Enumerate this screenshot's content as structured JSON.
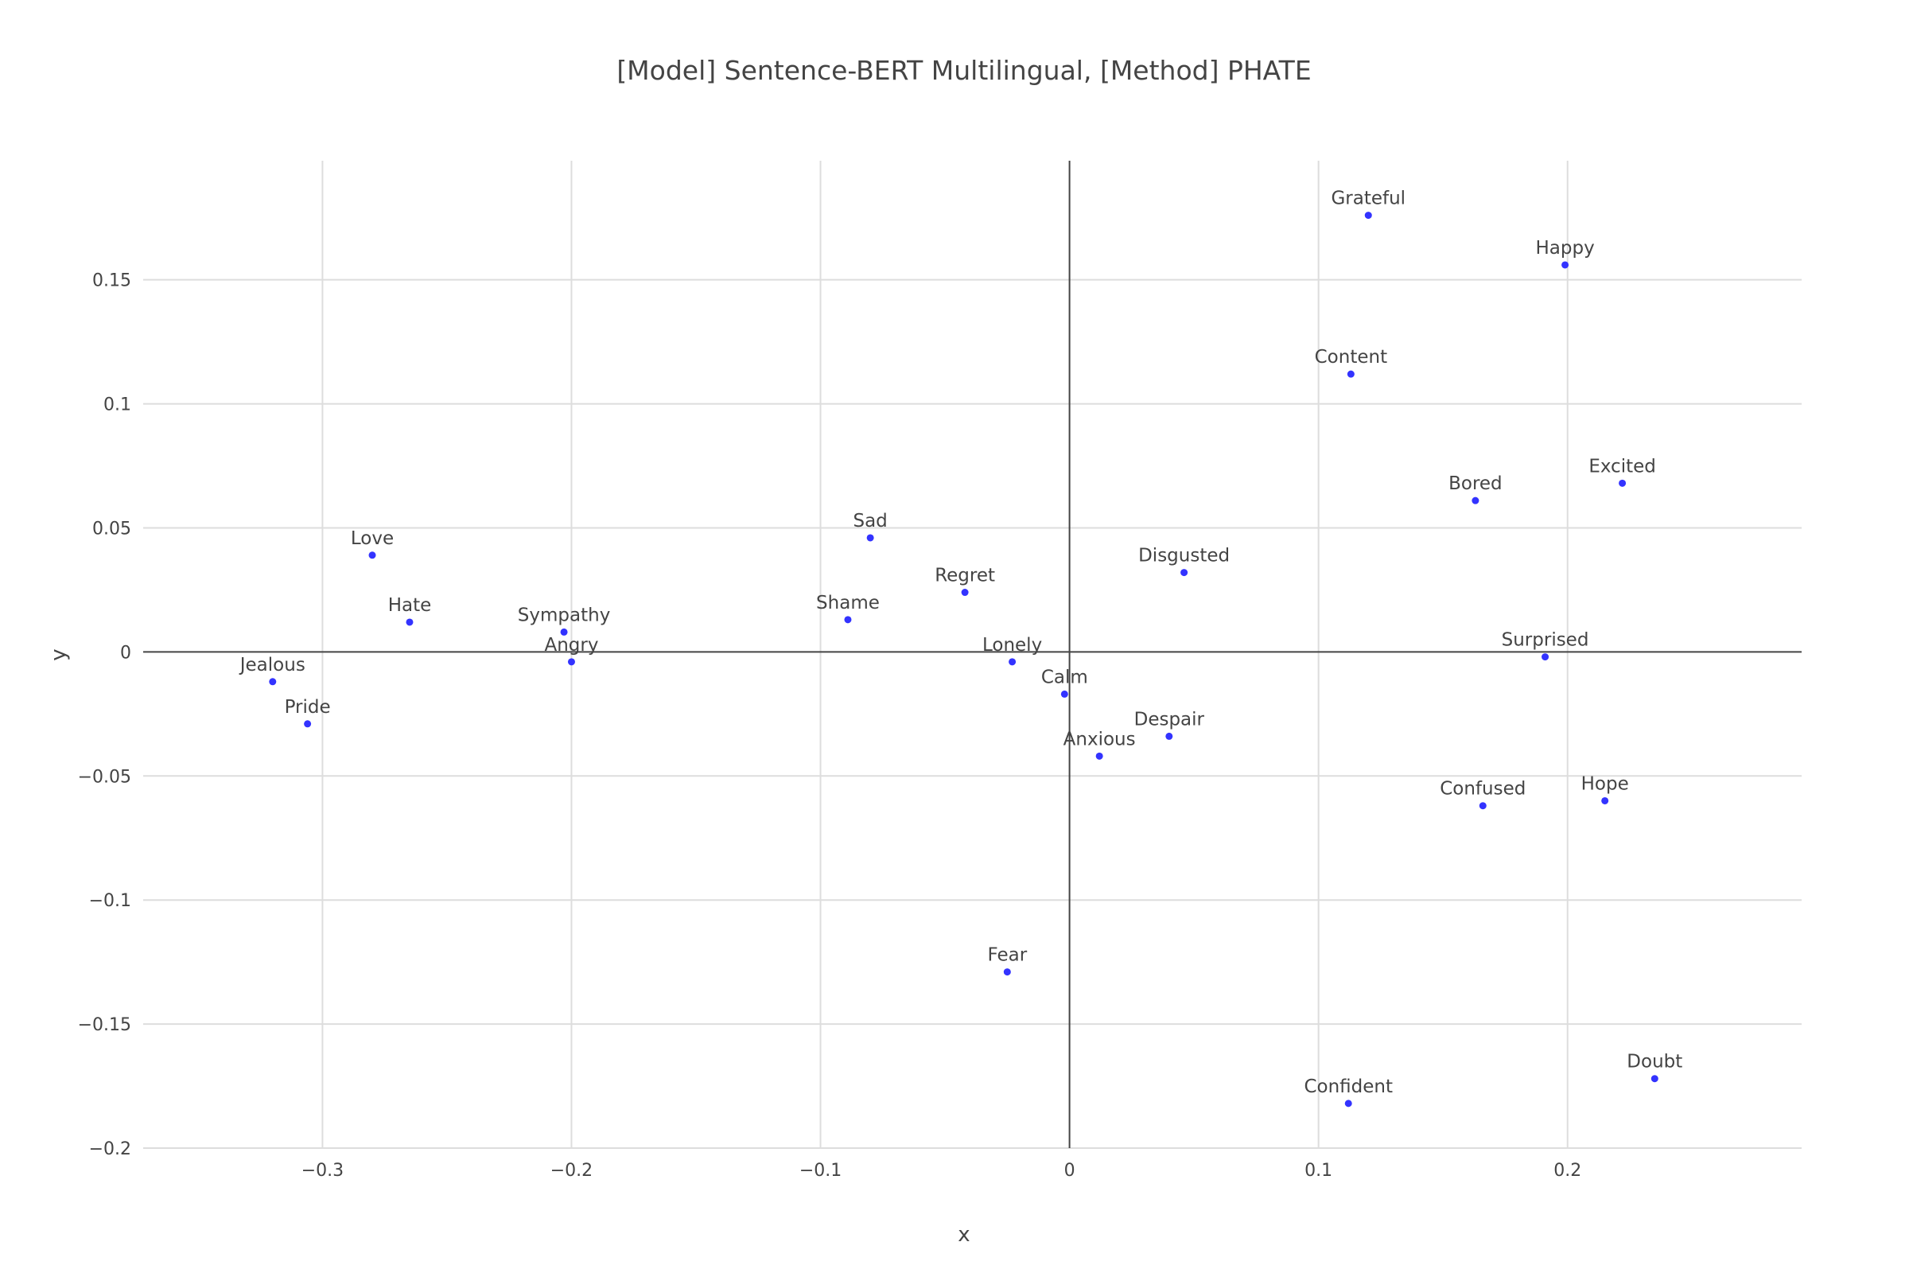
{
  "chart_data": {
    "type": "scatter",
    "title": "[Model] Sentence-BERT Multilingual, [Method] PHATE",
    "xlabel": "x",
    "ylabel": "y",
    "xlim": [
      -0.372,
      0.294
    ],
    "ylim": [
      -0.2,
      0.198
    ],
    "x_ticks": [
      -0.3,
      -0.2,
      -0.1,
      0,
      0.1,
      0.2
    ],
    "x_tick_labels": [
      "−0.3",
      "−0.2",
      "−0.1",
      "0",
      "0.1",
      "0.2"
    ],
    "y_ticks": [
      -0.2,
      -0.15,
      -0.1,
      -0.05,
      0,
      0.05,
      0.1,
      0.15
    ],
    "y_tick_labels": [
      "−0.2",
      "−0.15",
      "−0.1",
      "−0.05",
      "0",
      "0.05",
      "0.1",
      "0.15"
    ],
    "grid": true,
    "zero_lines": true,
    "marker_color": "#3333ff",
    "text_color": "#444444",
    "grid_color": "#dddddd",
    "points": [
      {
        "label": "Grateful",
        "x": 0.12,
        "y": 0.176
      },
      {
        "label": "Happy",
        "x": 0.199,
        "y": 0.156
      },
      {
        "label": "Content",
        "x": 0.113,
        "y": 0.112
      },
      {
        "label": "Excited",
        "x": 0.222,
        "y": 0.068
      },
      {
        "label": "Bored",
        "x": 0.163,
        "y": 0.061
      },
      {
        "label": "Sad",
        "x": -0.08,
        "y": 0.046
      },
      {
        "label": "Love",
        "x": -0.28,
        "y": 0.039
      },
      {
        "label": "Disgusted",
        "x": 0.046,
        "y": 0.032
      },
      {
        "label": "Regret",
        "x": -0.042,
        "y": 0.024
      },
      {
        "label": "Hate",
        "x": -0.265,
        "y": 0.012
      },
      {
        "label": "Shame",
        "x": -0.089,
        "y": 0.013
      },
      {
        "label": "Sympathy",
        "x": -0.203,
        "y": 0.008
      },
      {
        "label": "Angry",
        "x": -0.2,
        "y": -0.004
      },
      {
        "label": "Lonely",
        "x": -0.023,
        "y": -0.004
      },
      {
        "label": "Surprised",
        "x": 0.191,
        "y": -0.002
      },
      {
        "label": "Jealous",
        "x": -0.32,
        "y": -0.012
      },
      {
        "label": "Calm",
        "x": -0.002,
        "y": -0.017
      },
      {
        "label": "Pride",
        "x": -0.306,
        "y": -0.029
      },
      {
        "label": "Despair",
        "x": 0.04,
        "y": -0.034
      },
      {
        "label": "Anxious",
        "x": 0.012,
        "y": -0.042
      },
      {
        "label": "Confused",
        "x": 0.166,
        "y": -0.062
      },
      {
        "label": "Hope",
        "x": 0.215,
        "y": -0.06
      },
      {
        "label": "Fear",
        "x": -0.025,
        "y": -0.129
      },
      {
        "label": "Doubt",
        "x": 0.235,
        "y": -0.172
      },
      {
        "label": "Confident",
        "x": 0.112,
        "y": -0.182
      }
    ]
  }
}
